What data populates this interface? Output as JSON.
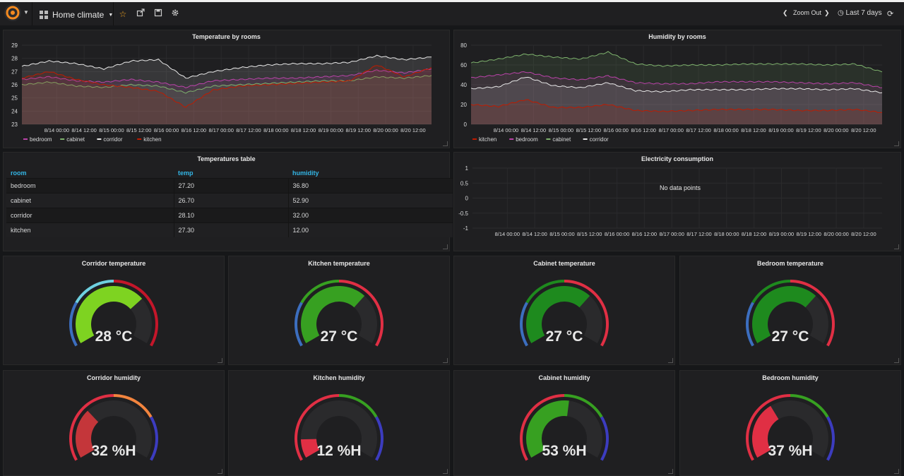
{
  "nav": {
    "dashboard_title": "Home climate",
    "zoom_out": "Zoom Out",
    "time_range": "Last 7 days"
  },
  "x_ticks": [
    "8/14 00:00",
    "8/14 12:00",
    "8/15 00:00",
    "8/15 12:00",
    "8/16 00:00",
    "8/16 12:00",
    "8/17 00:00",
    "8/17 12:00",
    "8/18 00:00",
    "8/18 12:00",
    "8/19 00:00",
    "8/19 12:00",
    "8/20 00:00",
    "8/20 12:00"
  ],
  "temp_panel": {
    "title": "Temperature by rooms",
    "legend": [
      {
        "name": "bedroom",
        "color": "#ba43a9"
      },
      {
        "name": "cabinet",
        "color": "#7eb26d"
      },
      {
        "name": "corridor",
        "color": "#e8e8e8"
      },
      {
        "name": "kitchen",
        "color": "#bf1b00"
      }
    ]
  },
  "humidity_panel": {
    "title": "Humidity by rooms",
    "legend": [
      {
        "name": "kitchen",
        "color": "#bf1b00"
      },
      {
        "name": "bedroom",
        "color": "#ba43a9"
      },
      {
        "name": "cabinet",
        "color": "#7eb26d"
      },
      {
        "name": "corridor",
        "color": "#e8e8e8"
      }
    ]
  },
  "table_panel": {
    "title": "Temperatures table",
    "columns": [
      "room",
      "temp",
      "humidity"
    ],
    "rows": [
      [
        "bedroom",
        "27.20",
        "36.80"
      ],
      [
        "cabinet",
        "26.70",
        "52.90"
      ],
      [
        "corridor",
        "28.10",
        "32.00"
      ],
      [
        "kitchen",
        "27.30",
        "12.00"
      ]
    ]
  },
  "electricity_panel": {
    "title": "Electricity consumption",
    "no_data": "No data points"
  },
  "gauges": [
    {
      "title": "Corridor temperature",
      "value": 28,
      "text": "28 °C",
      "fill": "#7ed321",
      "thresholds": [
        "#3c6ebf",
        "#6ed0e0",
        "#c4162a"
      ]
    },
    {
      "title": "Kitchen temperature",
      "value": 27,
      "text": "27 °C",
      "fill": "#37a021",
      "thresholds": [
        "#3c6ebf",
        "#37a021",
        "#e02f44"
      ]
    },
    {
      "title": "Cabinet temperature",
      "value": 27,
      "text": "27 °C",
      "fill": "#1e8a1e",
      "thresholds": [
        "#3c6ebf",
        "#1e8a1e",
        "#e02f44"
      ]
    },
    {
      "title": "Bedroom temperature",
      "value": 27,
      "text": "27 °C",
      "fill": "#1e8a1e",
      "thresholds": [
        "#3c6ebf",
        "#1e8a1e",
        "#e02f44"
      ]
    },
    {
      "title": "Corridor humidity",
      "value": 32,
      "text": "32 %H",
      "fill": "#c4363a",
      "thresholds": [
        "#e02f44",
        "#f2843e",
        "#3c3cbf"
      ]
    },
    {
      "title": "Kitchen humidity",
      "value": 12,
      "text": "12 %H",
      "fill": "#e02f44",
      "thresholds": [
        "#e02f44",
        "#37a021",
        "#3c3cbf"
      ]
    },
    {
      "title": "Cabinet humidity",
      "value": 53,
      "text": "53 %H",
      "fill": "#37a021",
      "thresholds": [
        "#e02f44",
        "#37a021",
        "#3c3cbf"
      ]
    },
    {
      "title": "Bedroom humidity",
      "value": 37,
      "text": "37 %H",
      "fill": "#e02f44",
      "thresholds": [
        "#e02f44",
        "#37a021",
        "#3c3cbf"
      ]
    }
  ],
  "chart_data": [
    {
      "type": "line",
      "title": "Temperature by rooms",
      "x": [
        "8/13 12:00",
        "8/14 00:00",
        "8/14 12:00",
        "8/15 00:00",
        "8/15 12:00",
        "8/16 00:00",
        "8/16 12:00",
        "8/17 00:00",
        "8/17 12:00",
        "8/18 00:00",
        "8/18 12:00",
        "8/19 00:00",
        "8/19 12:00",
        "8/20 00:00",
        "8/20 12:00",
        "8/20 18:00"
      ],
      "ylim": [
        23,
        29
      ],
      "yticks": [
        23,
        24,
        25,
        26,
        27,
        28,
        29
      ],
      "series": [
        {
          "name": "corridor",
          "values": [
            27.4,
            27.8,
            27.6,
            27.2,
            27.8,
            27.9,
            26.5,
            27.0,
            27.3,
            27.5,
            27.6,
            27.6,
            27.7,
            28.2,
            27.9,
            28.1
          ]
        },
        {
          "name": "bedroom",
          "values": [
            26.4,
            26.6,
            26.3,
            26.2,
            26.4,
            26.2,
            25.8,
            26.3,
            26.4,
            26.5,
            26.5,
            26.6,
            26.7,
            27.1,
            26.9,
            27.2
          ]
        },
        {
          "name": "cabinet",
          "values": [
            26.0,
            26.2,
            25.9,
            25.8,
            26.0,
            25.9,
            25.4,
            25.9,
            26.0,
            26.1,
            26.2,
            26.3,
            26.3,
            26.6,
            26.5,
            26.7
          ]
        },
        {
          "name": "kitchen",
          "values": [
            26.5,
            27.0,
            26.4,
            26.0,
            25.8,
            25.5,
            24.3,
            25.6,
            25.9,
            26.0,
            26.1,
            26.2,
            26.3,
            27.5,
            26.6,
            27.3
          ]
        }
      ]
    },
    {
      "type": "line",
      "title": "Humidity by rooms",
      "x": [
        "8/13 12:00",
        "8/14 00:00",
        "8/14 12:00",
        "8/15 00:00",
        "8/15 12:00",
        "8/16 00:00",
        "8/16 12:00",
        "8/17 00:00",
        "8/17 12:00",
        "8/18 00:00",
        "8/18 12:00",
        "8/19 00:00",
        "8/19 12:00",
        "8/20 00:00",
        "8/20 12:00",
        "8/20 18:00"
      ],
      "ylim": [
        0,
        80
      ],
      "yticks": [
        0,
        20,
        40,
        60,
        80
      ],
      "series": [
        {
          "name": "cabinet",
          "values": [
            62,
            66,
            71,
            68,
            66,
            73,
            61,
            59,
            60,
            60,
            61,
            61,
            61,
            60,
            61,
            53
          ]
        },
        {
          "name": "bedroom",
          "values": [
            47,
            50,
            53,
            47,
            45,
            49,
            42,
            41,
            41,
            43,
            43,
            43,
            42,
            41,
            42,
            37
          ]
        },
        {
          "name": "corridor",
          "values": [
            36,
            38,
            48,
            39,
            37,
            42,
            34,
            33,
            35,
            35,
            35,
            36,
            36,
            35,
            36,
            32
          ]
        },
        {
          "name": "kitchen",
          "values": [
            20,
            18,
            25,
            17,
            17,
            20,
            14,
            13,
            14,
            15,
            15,
            15,
            14,
            14,
            15,
            12
          ]
        }
      ]
    },
    {
      "type": "line",
      "title": "Electricity consumption",
      "ylim": [
        -1.0,
        1.0
      ],
      "yticks": [
        -1.0,
        -0.5,
        0,
        0.5,
        1.0
      ],
      "series": []
    }
  ]
}
